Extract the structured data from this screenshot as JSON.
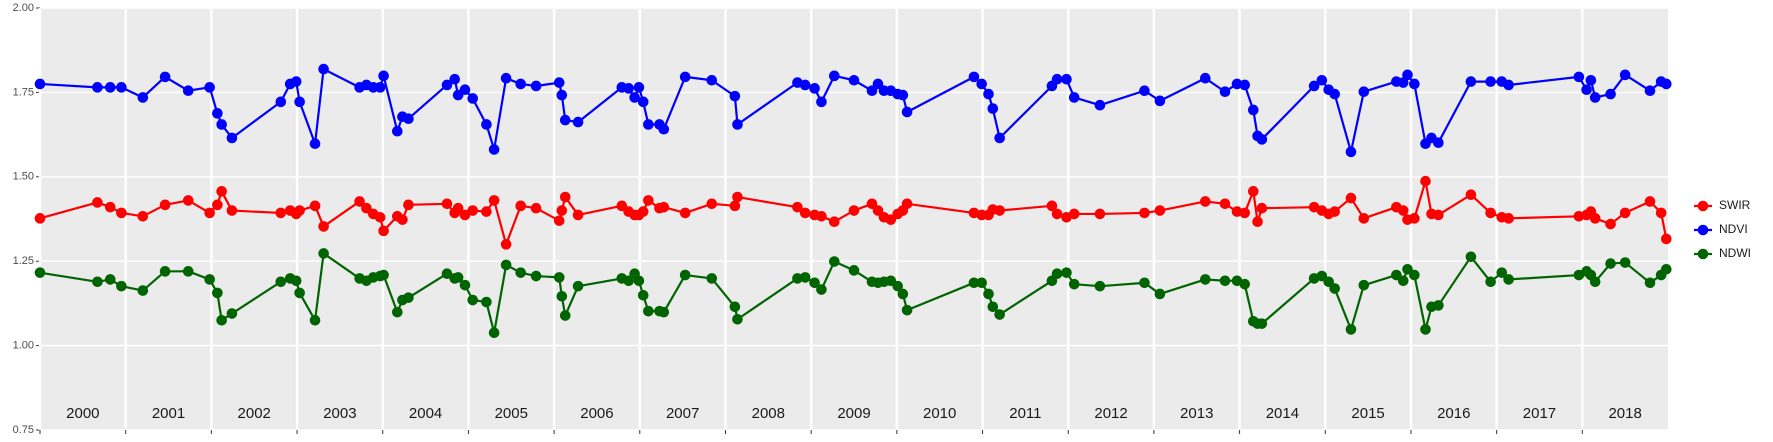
{
  "chart_data": {
    "type": "line",
    "x": [
      2000,
      2000.67,
      2000.82,
      2000.95,
      2001.2,
      2001.46,
      2001.73,
      2001.98,
      2002.07,
      2002.12,
      2002.24,
      2002.81,
      2002.92,
      2002.99,
      2003.03,
      2003.21,
      2003.31,
      2003.73,
      2003.81,
      2003.89,
      2003.97,
      2004.01,
      2004.17,
      2004.23,
      2004.3,
      2004.75,
      2004.84,
      2004.88,
      2004.96,
      2005.05,
      2005.21,
      2005.3,
      2005.44,
      2005.61,
      2005.79,
      2006.06,
      2006.09,
      2006.13,
      2006.28,
      2006.79,
      2006.87,
      2006.94,
      2006.99,
      2007.04,
      2007.1,
      2007.23,
      2007.28,
      2007.53,
      2007.84,
      2008.11,
      2008.14,
      2008.84,
      2008.93,
      2009.04,
      2009.12,
      2009.27,
      2009.5,
      2009.71,
      2009.78,
      2009.85,
      2009.93,
      2010.01,
      2010.07,
      2010.12,
      2010.9,
      2010.99,
      2011.07,
      2011.12,
      2011.2,
      2011.81,
      2011.87,
      2011.98,
      2012.07,
      2012.37,
      2012.89,
      2013.07,
      2013.6,
      2013.83,
      2013.97,
      2014.06,
      2014.16,
      2014.21,
      2014.26,
      2014.87,
      2014.96,
      2015.04,
      2015.11,
      2015.3,
      2015.45,
      2015.83,
      2015.91,
      2015.96,
      2016.04,
      2016.17,
      2016.24,
      2016.32,
      2016.7,
      2016.93,
      2017.06,
      2017.14,
      2017.96,
      2018.05,
      2018.1,
      2018.15,
      2018.33,
      2018.5,
      2018.79,
      2018.92,
      2018.98
    ],
    "series": [
      {
        "name": "SWIR",
        "color": "#ff0000",
        "values": [
          1.377,
          1.424,
          1.41,
          1.393,
          1.383,
          1.417,
          1.43,
          1.393,
          1.417,
          1.457,
          1.4,
          1.393,
          1.4,
          1.39,
          1.4,
          1.414,
          1.353,
          1.427,
          1.407,
          1.39,
          1.38,
          1.34,
          1.383,
          1.373,
          1.417,
          1.42,
          1.393,
          1.407,
          1.387,
          1.4,
          1.397,
          1.43,
          1.3,
          1.414,
          1.407,
          1.37,
          1.4,
          1.44,
          1.387,
          1.414,
          1.397,
          1.387,
          1.387,
          1.397,
          1.43,
          1.407,
          1.41,
          1.393,
          1.42,
          1.414,
          1.44,
          1.41,
          1.393,
          1.387,
          1.383,
          1.367,
          1.4,
          1.42,
          1.4,
          1.38,
          1.373,
          1.39,
          1.4,
          1.42,
          1.393,
          1.387,
          1.387,
          1.403,
          1.4,
          1.414,
          1.39,
          1.38,
          1.39,
          1.39,
          1.393,
          1.4,
          1.427,
          1.42,
          1.397,
          1.393,
          1.457,
          1.367,
          1.407,
          1.41,
          1.4,
          1.39,
          1.397,
          1.437,
          1.377,
          1.41,
          1.4,
          1.373,
          1.377,
          1.487,
          1.39,
          1.387,
          1.447,
          1.393,
          1.38,
          1.377,
          1.383,
          1.387,
          1.397,
          1.377,
          1.36,
          1.393,
          1.427,
          1.393,
          1.316
        ]
      },
      {
        "name": "NDVI",
        "color": "#0000ff",
        "values": [
          1.775,
          1.765,
          1.765,
          1.765,
          1.735,
          1.796,
          1.755,
          1.765,
          1.688,
          1.655,
          1.615,
          1.722,
          1.775,
          1.782,
          1.722,
          1.598,
          1.819,
          1.765,
          1.772,
          1.765,
          1.765,
          1.799,
          1.635,
          1.678,
          1.672,
          1.772,
          1.789,
          1.742,
          1.758,
          1.732,
          1.655,
          1.581,
          1.792,
          1.775,
          1.769,
          1.779,
          1.742,
          1.668,
          1.662,
          1.765,
          1.762,
          1.735,
          1.765,
          1.722,
          1.655,
          1.655,
          1.641,
          1.796,
          1.786,
          1.739,
          1.655,
          1.779,
          1.772,
          1.762,
          1.722,
          1.799,
          1.786,
          1.755,
          1.775,
          1.755,
          1.755,
          1.745,
          1.742,
          1.692,
          1.796,
          1.775,
          1.745,
          1.702,
          1.615,
          1.769,
          1.789,
          1.789,
          1.735,
          1.712,
          1.755,
          1.725,
          1.792,
          1.752,
          1.775,
          1.772,
          1.698,
          1.621,
          1.611,
          1.769,
          1.786,
          1.758,
          1.745,
          1.574,
          1.752,
          1.782,
          1.779,
          1.802,
          1.775,
          1.598,
          1.615,
          1.601,
          1.782,
          1.782,
          1.782,
          1.772,
          1.796,
          1.758,
          1.786,
          1.735,
          1.745,
          1.802,
          1.755,
          1.782,
          1.775
        ]
      },
      {
        "name": "NDWI",
        "color": "#006400",
        "values": [
          1.216,
          1.189,
          1.196,
          1.176,
          1.163,
          1.22,
          1.22,
          1.196,
          1.156,
          1.075,
          1.095,
          1.189,
          1.199,
          1.192,
          1.156,
          1.075,
          1.273,
          1.199,
          1.192,
          1.202,
          1.206,
          1.209,
          1.099,
          1.135,
          1.142,
          1.213,
          1.199,
          1.202,
          1.179,
          1.135,
          1.129,
          1.038,
          1.239,
          1.216,
          1.206,
          1.202,
          1.146,
          1.089,
          1.176,
          1.199,
          1.192,
          1.213,
          1.192,
          1.149,
          1.102,
          1.102,
          1.099,
          1.209,
          1.199,
          1.115,
          1.078,
          1.199,
          1.202,
          1.186,
          1.166,
          1.249,
          1.223,
          1.189,
          1.186,
          1.189,
          1.192,
          1.176,
          1.153,
          1.105,
          1.186,
          1.186,
          1.153,
          1.115,
          1.092,
          1.192,
          1.213,
          1.216,
          1.182,
          1.176,
          1.186,
          1.153,
          1.196,
          1.192,
          1.192,
          1.182,
          1.072,
          1.065,
          1.065,
          1.199,
          1.206,
          1.189,
          1.169,
          1.048,
          1.179,
          1.209,
          1.192,
          1.226,
          1.209,
          1.048,
          1.115,
          1.119,
          1.263,
          1.189,
          1.216,
          1.196,
          1.209,
          1.22,
          1.209,
          1.189,
          1.243,
          1.246,
          1.186,
          1.209,
          1.226
        ]
      }
    ],
    "xlim": [
      2000,
      2019
    ],
    "xticks": [
      2000,
      2001,
      2002,
      2003,
      2004,
      2005,
      2006,
      2007,
      2008,
      2009,
      2010,
      2011,
      2012,
      2013,
      2014,
      2015,
      2016,
      2017,
      2018
    ],
    "ylim": [
      0.75,
      2.0
    ],
    "yticks": [
      0.75,
      {
        "value": 1,
        "label": "1.00"
      },
      1.25,
      {
        "value": 1.5,
        "label": "1.50"
      },
      1.75,
      {
        "value": 2,
        "label": "2.00"
      }
    ],
    "grid": true,
    "legend": "right"
  }
}
